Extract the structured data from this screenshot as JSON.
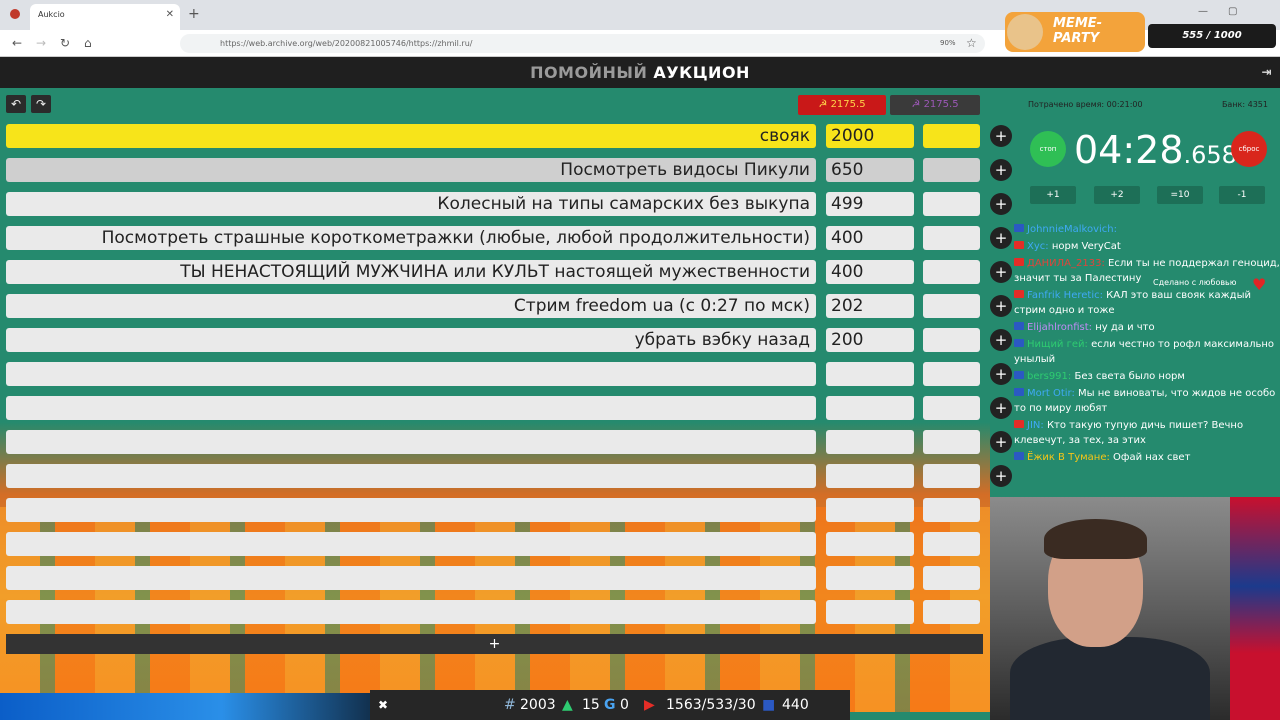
{
  "browser": {
    "tab_title": "Aukcio",
    "url": "https://web.archive.org/web/20200821005746/https://zhmil.ru/",
    "zoom": "90%"
  },
  "header": {
    "title_dim": "ПОМОЙНЫЙ",
    "title_main": "АУКЦИОН"
  },
  "banks": {
    "bank1": "☭ 2175.5",
    "bank2": "☭ 2175.5"
  },
  "lots": [
    {
      "name": "свояк",
      "amount": "2000"
    },
    {
      "name": "Посмотреть видосы Пикули",
      "amount": "650"
    },
    {
      "name": "Колесный на типы самарских без выкупа",
      "amount": "499"
    },
    {
      "name": "Посмотреть страшные короткометражки (любые, любой продолжительности)",
      "amount": "400"
    },
    {
      "name": "ТЫ НЕНАСТОЯЩИЙ МУЖЧИНА или КУЛЬТ настоящей мужественности",
      "amount": "400"
    },
    {
      "name": "Стрим freedom ua (с 0:27 по мск)",
      "amount": "202"
    },
    {
      "name": "убрать вэбку назад",
      "amount": "200"
    },
    {
      "name": "",
      "amount": ""
    },
    {
      "name": "",
      "amount": ""
    },
    {
      "name": "",
      "amount": ""
    },
    {
      "name": "",
      "amount": ""
    },
    {
      "name": "",
      "amount": ""
    },
    {
      "name": "",
      "amount": ""
    },
    {
      "name": "",
      "amount": ""
    },
    {
      "name": "",
      "amount": ""
    }
  ],
  "add_lot": "+",
  "timer": {
    "spent": "Потрачено время: 00:21:00",
    "bank": "Банк: 4351",
    "stop": "стоп",
    "reset": "сброс",
    "time": "04:28",
    "ms": ".658",
    "buttons": [
      "+1",
      "+2",
      "=10",
      "-1"
    ]
  },
  "chat": {
    "made_with": "Сделано с любовью",
    "messages": [
      {
        "platform": "twitch",
        "nick": "JohnnieMalkovich:",
        "color": "#3fa9f5",
        "text": ""
      },
      {
        "platform": "yt",
        "nick": "Хус:",
        "color": "#3fa9f5",
        "text": "норм VeryCat"
      },
      {
        "platform": "yt",
        "nick": "ДАНИЛА_2133:",
        "color": "#e0453a",
        "text": "Если ты не поддержал геноцид, значит ты за Палестину"
      },
      {
        "platform": "yt",
        "nick": "Fanfrik Heretic:",
        "color": "#3fa9f5",
        "text": "КАЛ это ваш свояк каждый стрим одно и тоже"
      },
      {
        "platform": "twitch",
        "nick": "Elijahlronfist:",
        "color": "#c08cf5",
        "text": "ну да и что"
      },
      {
        "platform": "twitch",
        "nick": "Нищий гей:",
        "color": "#2ecc71",
        "text": "если честно то рофл максимально унылый"
      },
      {
        "platform": "twitch",
        "nick": "bers991:",
        "color": "#2ecc71",
        "text": "Без света было норм"
      },
      {
        "platform": "twitch",
        "nick": "Mort Otir:",
        "color": "#3fa9f5",
        "text": "Мы не виноваты, что жидов не особо то по миру любят"
      },
      {
        "platform": "yt",
        "nick": "JIN:",
        "color": "#3fa9f5",
        "text": "Кто такую тупую дичь пишет? Вечно клевечут, за тех, за этих"
      },
      {
        "platform": "twitch",
        "nick": "Ёжик В Тумане:",
        "color": "#f5c518",
        "text": "Офай нах свет"
      }
    ]
  },
  "meme_party": {
    "label": "MEME-PARTY",
    "count": "555 / 1000"
  },
  "stats": {
    "hash": "2003",
    "up": "15",
    "g": "0",
    "yt": "1563/533/30",
    "tw": "440"
  }
}
